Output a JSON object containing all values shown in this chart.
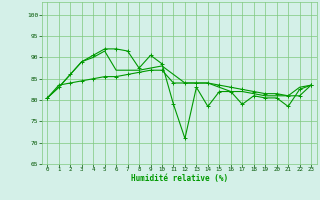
{
  "xlabel": "Humidité relative (%)",
  "bg_color": "#d4f0e8",
  "grid_color": "#7fc87f",
  "line_color": "#009900",
  "tick_color": "#005500",
  "ylim": [
    65,
    103
  ],
  "yticks": [
    65,
    70,
    75,
    80,
    85,
    90,
    95,
    100
  ],
  "xlim": [
    -0.5,
    23.5
  ],
  "xticks": [
    0,
    1,
    2,
    3,
    4,
    5,
    6,
    7,
    8,
    9,
    10,
    11,
    12,
    13,
    14,
    15,
    16,
    17,
    18,
    19,
    20,
    21,
    22,
    23
  ],
  "series1": [
    80.5,
    83.5,
    84,
    84.5,
    85,
    85.5,
    85.5,
    86,
    86.5,
    87,
    87,
    84,
    84,
    84,
    84,
    83.5,
    83,
    82.5,
    82,
    81.5,
    81.5,
    81,
    81,
    83.5
  ],
  "series2": [
    80.5,
    83,
    86,
    89,
    90.5,
    92,
    92,
    91.5,
    87.5,
    90.5,
    88.5,
    79,
    71,
    83,
    78.5,
    82,
    82,
    79,
    81,
    80.5,
    80.5,
    78.5,
    82.5,
    83.5
  ],
  "series3": [
    80.5,
    83,
    86,
    89,
    90,
    91.5,
    87,
    87,
    87,
    87.5,
    88,
    86,
    84,
    84,
    84,
    83,
    82,
    82,
    81.5,
    81,
    81,
    81,
    83,
    83.5
  ]
}
